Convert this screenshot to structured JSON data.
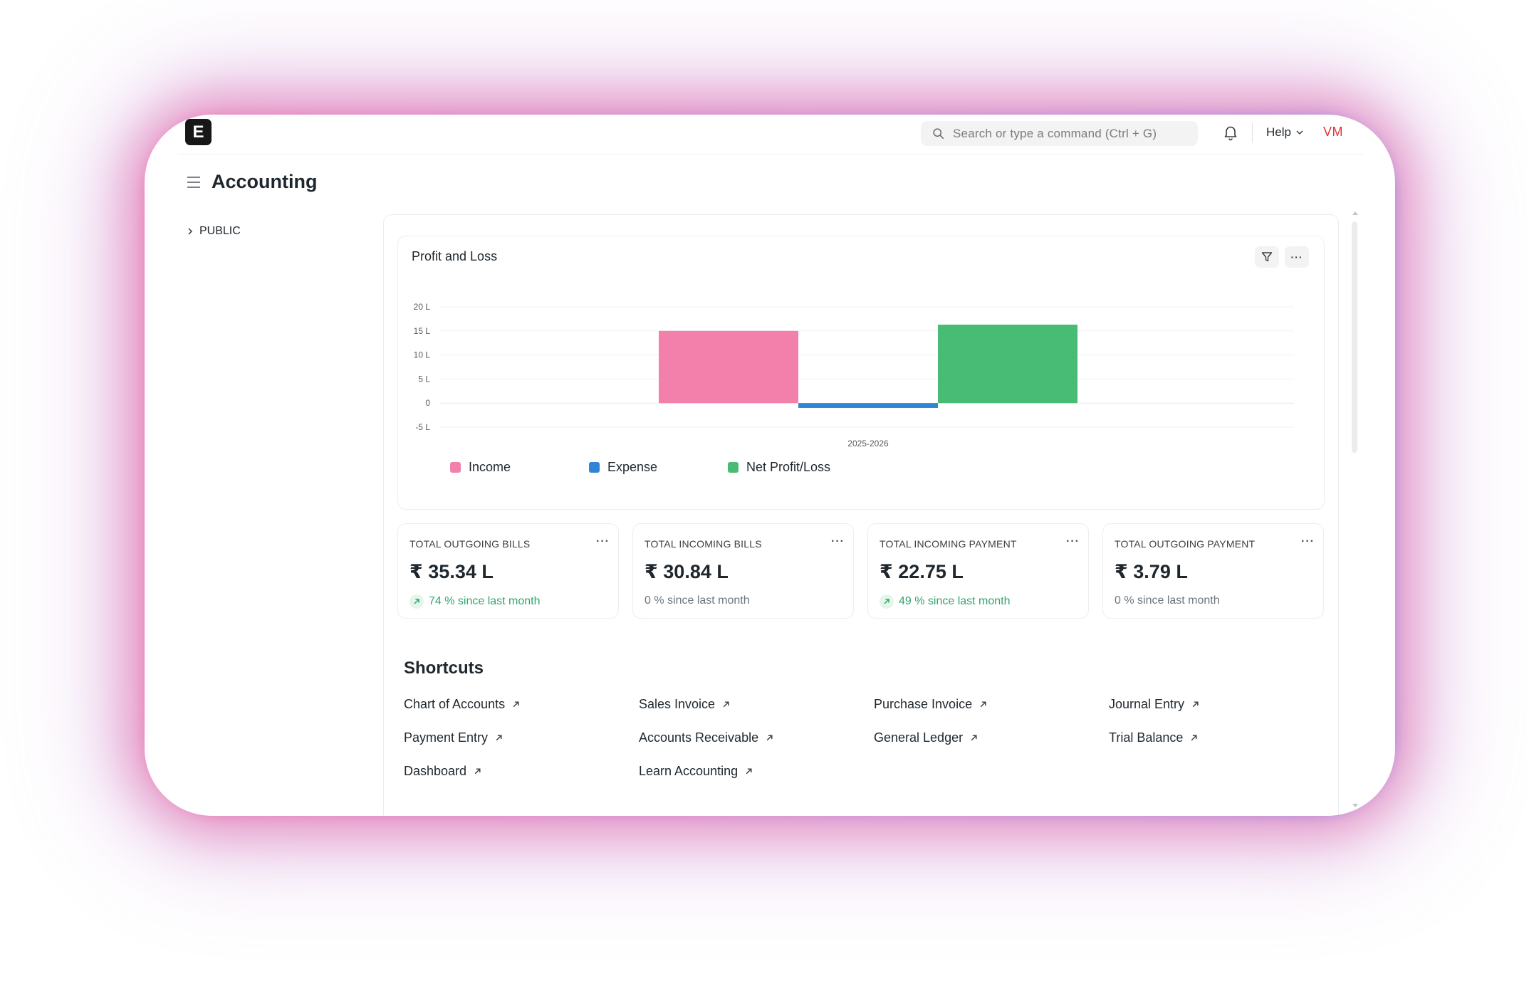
{
  "navbar": {
    "logo": "E",
    "search_placeholder": "Search or type a command (Ctrl + G)",
    "help_label": "Help",
    "avatar_initials": "VM"
  },
  "page": {
    "title": "Accounting"
  },
  "sidebar": {
    "items": [
      {
        "label": "PUBLIC"
      }
    ]
  },
  "chart_card": {
    "title": "Profit and Loss",
    "more_label": "···"
  },
  "chart_data": {
    "type": "bar",
    "title": "Profit and Loss",
    "categories": [
      "2025-2026"
    ],
    "series": [
      {
        "name": "Income",
        "values": [
          15
        ],
        "color": "#f380ab"
      },
      {
        "name": "Expense",
        "values": [
          -1
        ],
        "color": "#2f84d6"
      },
      {
        "name": "Net Profit/Loss",
        "values": [
          16.3
        ],
        "color": "#48bb74"
      }
    ],
    "y_unit": "L",
    "yticks": [
      "20 L",
      "15 L",
      "10 L",
      "5 L",
      "0",
      "-5 L"
    ],
    "ytick_values": [
      20,
      15,
      10,
      5,
      0,
      -5
    ],
    "ylim": [
      -5,
      20
    ],
    "grid": true,
    "legend_position": "bottom-left"
  },
  "stats": [
    {
      "label": "TOTAL OUTGOING BILLS",
      "value": "₹ 35.34 L",
      "trend": "74 % since last month",
      "direction": "up"
    },
    {
      "label": "TOTAL INCOMING BILLS",
      "value": "₹ 30.84 L",
      "trend": "0 % since last month",
      "direction": "flat"
    },
    {
      "label": "TOTAL INCOMING PAYMENT",
      "value": "₹ 22.75 L",
      "trend": "49 % since last month",
      "direction": "up"
    },
    {
      "label": "TOTAL OUTGOING PAYMENT",
      "value": "₹ 3.79 L",
      "trend": "0 % since last month",
      "direction": "flat"
    }
  ],
  "stat_more_label": "···",
  "shortcuts": {
    "title": "Shortcuts",
    "items": [
      {
        "label": "Chart of Accounts"
      },
      {
        "label": "Sales Invoice"
      },
      {
        "label": "Purchase Invoice"
      },
      {
        "label": "Journal Entry"
      },
      {
        "label": "Payment Entry"
      },
      {
        "label": "Accounts Receivable"
      },
      {
        "label": "General Ledger"
      },
      {
        "label": "Trial Balance"
      },
      {
        "label": "Dashboard"
      },
      {
        "label": "Learn Accounting"
      }
    ]
  }
}
